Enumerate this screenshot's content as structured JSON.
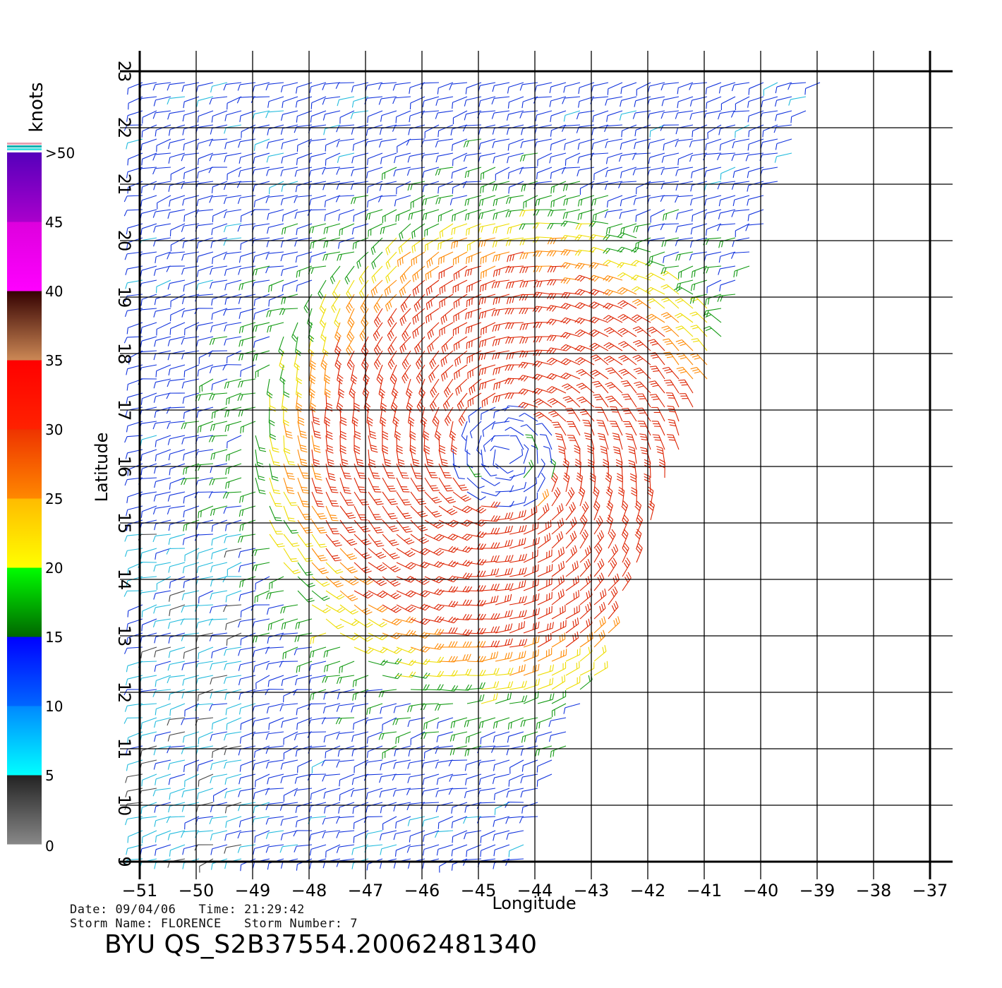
{
  "info": {
    "date_label": "Date:",
    "date": "09/04/06",
    "time_label": "Time:",
    "time": "21:29:42",
    "storm_name_label": "Storm Name:",
    "storm_name": "FLORENCE",
    "storm_number_label": "Storm Number:",
    "storm_number": "7"
  },
  "product_id": "BYU QS_S2B37554.20062481340",
  "axes": {
    "xlabel": "Longitude",
    "ylabel": "Latitude",
    "lon_range": [
      -51,
      -37
    ],
    "lat_range": [
      9,
      23
    ],
    "lon_ticks": [
      -51,
      -50,
      -49,
      -48,
      -47,
      -46,
      -45,
      -44,
      -43,
      -42,
      -41,
      -40,
      -39,
      -38,
      -37
    ],
    "lat_ticks": [
      9,
      10,
      11,
      12,
      13,
      14,
      15,
      16,
      17,
      18,
      19,
      20,
      21,
      22,
      23
    ],
    "grid": true
  },
  "colorbar": {
    "unit": "knots",
    "ticks": [
      "0",
      "5",
      "10",
      "15",
      "20",
      "25",
      "30",
      "35",
      "40",
      "45",
      ">50"
    ],
    "bands": [
      {
        "from": 0,
        "to": 5,
        "colors": [
          "#888888",
          "#222222"
        ]
      },
      {
        "from": 5,
        "to": 10,
        "colors": [
          "#00ffff",
          "#0088ff"
        ]
      },
      {
        "from": 10,
        "to": 15,
        "colors": [
          "#0066ff",
          "#0000ff"
        ]
      },
      {
        "from": 15,
        "to": 20,
        "colors": [
          "#006600",
          "#00ff00"
        ]
      },
      {
        "from": 20,
        "to": 25,
        "colors": [
          "#ffff00",
          "#ffbb00"
        ]
      },
      {
        "from": 25,
        "to": 30,
        "colors": [
          "#ff8800",
          "#ee3300"
        ]
      },
      {
        "from": 30,
        "to": 35,
        "colors": [
          "#ff2200",
          "#ff0000"
        ]
      },
      {
        "from": 35,
        "to": 40,
        "colors": [
          "#cc8855",
          "#330000"
        ]
      },
      {
        "from": 40,
        "to": 45,
        "colors": [
          "#ff00ff",
          "#dd00dd"
        ]
      },
      {
        "from": 45,
        "to": 50,
        "colors": [
          "#aa00cc",
          "#5500bb"
        ]
      }
    ]
  },
  "storm": {
    "name": "FLORENCE",
    "center_lon": -44.5,
    "center_lat": 16.2
  },
  "colors": {
    "axis": "#000000",
    "grid": "#000000",
    "background": "#ffffff"
  }
}
